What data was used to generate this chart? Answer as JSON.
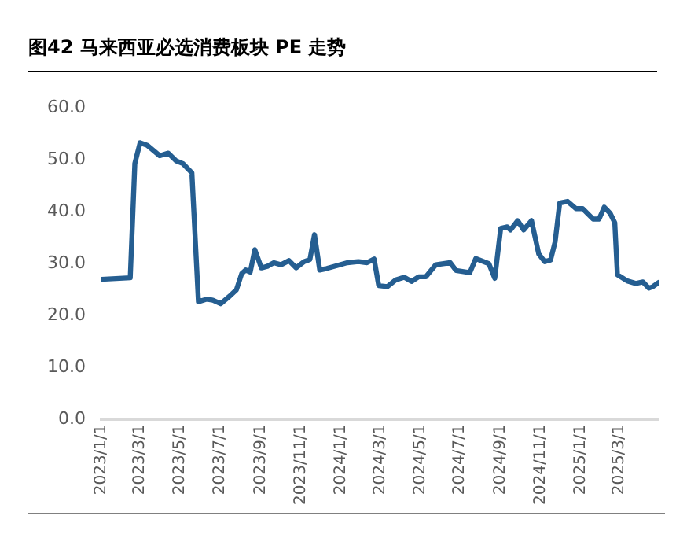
{
  "chart_data": {
    "type": "line",
    "title": "图42 马来西亚必选消费板块 PE 走势",
    "x": [
      "2023-01-01",
      "2023-02-14",
      "2023-02-21",
      "2023-03-01",
      "2023-03-12",
      "2023-03-31",
      "2023-04-13",
      "2023-04-25",
      "2023-05-05",
      "2023-05-19",
      "2023-05-29",
      "2023-06-11",
      "2023-06-20",
      "2023-07-02",
      "2023-07-16",
      "2023-07-26",
      "2023-08-03",
      "2023-08-09",
      "2023-08-16",
      "2023-08-23",
      "2023-09-02",
      "2023-09-11",
      "2023-09-21",
      "2023-10-02",
      "2023-10-14",
      "2023-10-25",
      "2023-11-06",
      "2023-11-15",
      "2023-11-22",
      "2023-11-30",
      "2023-12-11",
      "2023-12-25",
      "2024-01-11",
      "2024-01-28",
      "2024-02-10",
      "2024-02-21",
      "2024-02-28",
      "2024-03-12",
      "2024-03-25",
      "2024-04-07",
      "2024-04-18",
      "2024-04-29",
      "2024-05-10",
      "2024-05-25",
      "2024-06-16",
      "2024-06-25",
      "2024-07-16",
      "2024-07-25",
      "2024-08-14",
      "2024-08-23",
      "2024-09-01",
      "2024-09-11",
      "2024-09-16",
      "2024-09-27",
      "2024-10-06",
      "2024-10-18",
      "2024-10-29",
      "2024-11-07",
      "2024-11-16",
      "2024-11-23",
      "2024-11-30",
      "2024-12-12",
      "2024-12-25",
      "2025-01-04",
      "2025-01-20",
      "2025-01-29",
      "2025-02-06",
      "2025-02-15",
      "2025-02-22",
      "2025-02-26",
      "2025-03-13",
      "2025-03-26",
      "2025-04-06",
      "2025-04-15",
      "2025-04-21",
      "2025-04-30"
    ],
    "series": [
      {
        "color": "#255e91",
        "values": [
          27.0,
          27.3,
          49.3,
          53.3,
          52.8,
          50.8,
          51.3,
          49.8,
          49.3,
          47.5,
          22.7,
          23.2,
          23.0,
          22.3,
          23.8,
          25.0,
          28.1,
          28.8,
          28.4,
          32.7,
          29.2,
          29.5,
          30.2,
          29.8,
          30.6,
          29.2,
          30.4,
          30.8,
          35.6,
          28.8,
          29.1,
          29.6,
          30.2,
          30.4,
          30.2,
          30.9,
          25.8,
          25.6,
          26.9,
          27.4,
          26.6,
          27.5,
          27.5,
          29.8,
          30.2,
          28.7,
          28.3,
          31.0,
          30.0,
          27.2,
          36.8,
          37.1,
          36.5,
          38.3,
          36.5,
          38.3,
          31.9,
          30.4,
          30.7,
          34.2,
          41.7,
          42.0,
          40.6,
          40.6,
          38.6,
          38.6,
          40.9,
          39.7,
          37.9,
          27.9,
          26.7,
          26.2,
          26.5,
          25.3,
          25.6,
          26.4
        ]
      }
    ],
    "xlim": [
      "2023-01-01",
      "2025-04-30"
    ],
    "xticks": [
      {
        "value": "2023-01-01",
        "label": "2023/1/1"
      },
      {
        "value": "2023-03-01",
        "label": "2023/3/1"
      },
      {
        "value": "2023-05-01",
        "label": "2023/5/1"
      },
      {
        "value": "2023-07-01",
        "label": "2023/7/1"
      },
      {
        "value": "2023-09-01",
        "label": "2023/9/1"
      },
      {
        "value": "2023-11-01",
        "label": "2023/11/1"
      },
      {
        "value": "2024-01-01",
        "label": "2024/1/1"
      },
      {
        "value": "2024-03-01",
        "label": "2024/3/1"
      },
      {
        "value": "2024-05-01",
        "label": "2024/5/1"
      },
      {
        "value": "2024-07-01",
        "label": "2024/7/1"
      },
      {
        "value": "2024-09-01",
        "label": "2024/9/1"
      },
      {
        "value": "2024-11-01",
        "label": "2024/11/1"
      },
      {
        "value": "2025-01-01",
        "label": "2025/1/1"
      },
      {
        "value": "2025-03-01",
        "label": "2025/3/1"
      }
    ],
    "ylim": [
      0,
      60
    ],
    "yticks": [
      {
        "value": 0,
        "label": "0.0"
      },
      {
        "value": 10,
        "label": "10.0"
      },
      {
        "value": 20,
        "label": "20.0"
      },
      {
        "value": 30,
        "label": "30.0"
      },
      {
        "value": 40,
        "label": "40.0"
      },
      {
        "value": 50,
        "label": "50.0"
      },
      {
        "value": 60,
        "label": "60.0"
      }
    ],
    "grid": false,
    "legend": false,
    "marker": "none",
    "line_style": "solid"
  }
}
